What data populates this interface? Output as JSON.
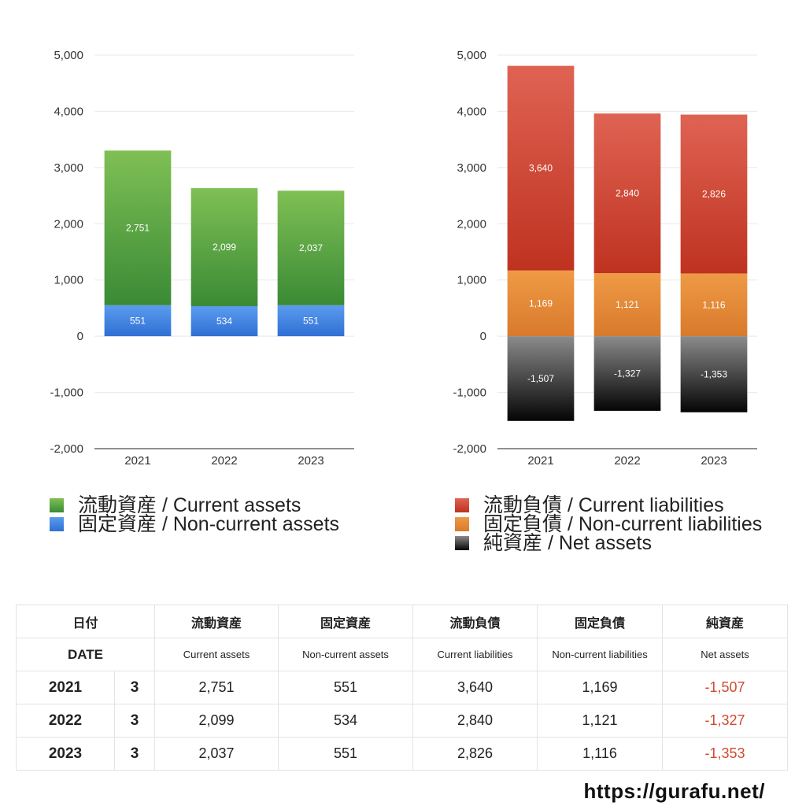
{
  "chart_data": [
    {
      "type": "bar",
      "stacked": true,
      "categories": [
        "2021",
        "2022",
        "2023"
      ],
      "ylim": [
        -2000,
        5000
      ],
      "yticks": [
        5000,
        4000,
        3000,
        2000,
        1000,
        0,
        -1000,
        -2000
      ],
      "ytick_labels": [
        "5,000",
        "4,000",
        "3,000",
        "2,000",
        "1,000",
        "0",
        "-1,000",
        "-2,000"
      ],
      "grid": true,
      "series": [
        {
          "name": "固定資産 / Non-current assets",
          "values": [
            551,
            534,
            551
          ],
          "labels": [
            "551",
            "534",
            "551"
          ],
          "color_top": "#5b9cf0",
          "color_bottom": "#2f6fd3"
        },
        {
          "name": "流動資産 / Current assets",
          "values": [
            2751,
            2099,
            2037
          ],
          "labels": [
            "2,751",
            "2,099",
            "2,037"
          ],
          "color_top": "#7fc055",
          "color_bottom": "#3a8a35"
        }
      ],
      "legend": {
        "placement": "bottom",
        "items": [
          {
            "label": "流動資産 / Current assets",
            "color": "#4e9e3c"
          },
          {
            "label": "固定資産 / Non-current assets",
            "color": "#3e7fe0"
          }
        ]
      }
    },
    {
      "type": "bar",
      "stacked": true,
      "categories": [
        "2021",
        "2022",
        "2023"
      ],
      "ylim": [
        -2000,
        5000
      ],
      "yticks": [
        5000,
        4000,
        3000,
        2000,
        1000,
        0,
        -1000,
        -2000
      ],
      "ytick_labels": [
        "5,000",
        "4,000",
        "3,000",
        "2,000",
        "1,000",
        "0",
        "-1,000",
        "-2,000"
      ],
      "grid": true,
      "series": [
        {
          "name": "固定負債 / Non-current liabilities",
          "values": [
            1169,
            1121,
            1116
          ],
          "labels": [
            "1,169",
            "1,121",
            "1,116"
          ],
          "color_top": "#ef9a45",
          "color_bottom": "#d87a2c"
        },
        {
          "name": "流動負債 / Current liabilities",
          "values": [
            3640,
            2840,
            2826
          ],
          "labels": [
            "3,640",
            "2,840",
            "2,826"
          ],
          "color_top": "#df6353",
          "color_bottom": "#bf3220"
        },
        {
          "name": "純資産 / Net assets",
          "values": [
            -1507,
            -1327,
            -1353
          ],
          "labels": [
            "-1,507",
            "-1,327",
            "-1,353"
          ],
          "color_top": "#8b8b8b",
          "color_bottom": "#050505"
        }
      ],
      "legend": {
        "placement": "bottom",
        "items": [
          {
            "label": "流動負債 / Current liabilities",
            "color": "#d24a3a"
          },
          {
            "label": "固定負債 / Non-current liabilities",
            "color": "#e88a3a"
          },
          {
            "label": "純資産 / Net assets",
            "color": "#333333"
          }
        ]
      }
    }
  ],
  "table": {
    "header_jp": [
      "日付",
      "流動資産",
      "固定資産",
      "流動負債",
      "固定負債",
      "純資産"
    ],
    "header_en": [
      "DATE",
      "Current assets",
      "Non-current assets",
      "Current liabilities",
      "Non-current liabilities",
      "Net assets"
    ],
    "rows": [
      {
        "year": "2021",
        "month": "3",
        "values": [
          "2,751",
          "551",
          "3,640",
          "1,169",
          "-1,507"
        ]
      },
      {
        "year": "2022",
        "month": "3",
        "values": [
          "2,099",
          "534",
          "2,840",
          "1,121",
          "-1,327"
        ]
      },
      {
        "year": "2023",
        "month": "3",
        "values": [
          "2,037",
          "551",
          "2,826",
          "1,116",
          "-1,353"
        ]
      }
    ],
    "negative_color": "#d14a32"
  },
  "site": "https://gurafu.net/"
}
